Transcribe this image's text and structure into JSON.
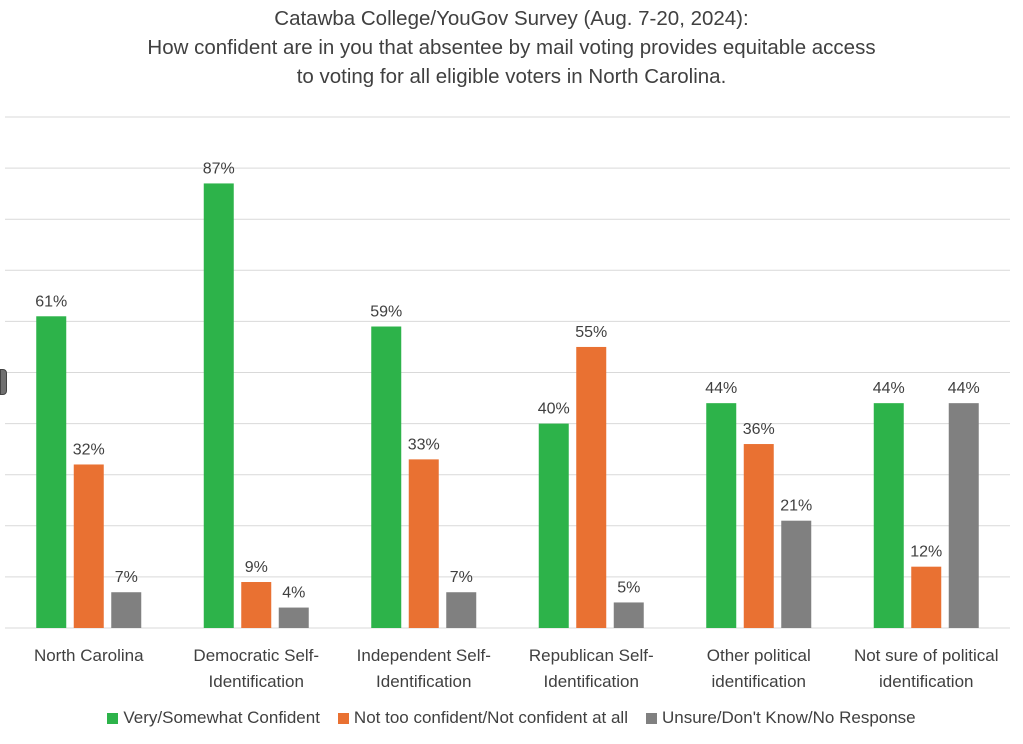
{
  "chart_data": {
    "type": "bar",
    "title": [
      "Catawba College/YouGov Survey (Aug. 7-20, 2024):",
      "How confident are in you that absentee by mail voting provides equitable access",
      "to voting for all eligible voters in North Carolina."
    ],
    "categories": [
      [
        "North Carolina"
      ],
      [
        "Democratic Self-",
        "Identification"
      ],
      [
        "Independent Self-",
        "Identification"
      ],
      [
        "Republican Self-",
        "Identification"
      ],
      [
        "Other political",
        "identification"
      ],
      [
        "Not sure of political",
        "identification"
      ]
    ],
    "series": [
      {
        "name": "Very/Somewhat Confident",
        "color": "#2db34a",
        "values": [
          61,
          87,
          59,
          40,
          44,
          44
        ]
      },
      {
        "name": "Not too confident/Not confident at all",
        "color": "#e97132",
        "values": [
          32,
          9,
          33,
          55,
          36,
          12
        ]
      },
      {
        "name": "Unsure/Don't Know/No Response",
        "color": "#808080",
        "values": [
          7,
          4,
          7,
          5,
          21,
          44
        ]
      }
    ],
    "ylim": [
      0,
      100
    ],
    "grid": true,
    "legend": "bottom",
    "value_suffix": "%"
  }
}
